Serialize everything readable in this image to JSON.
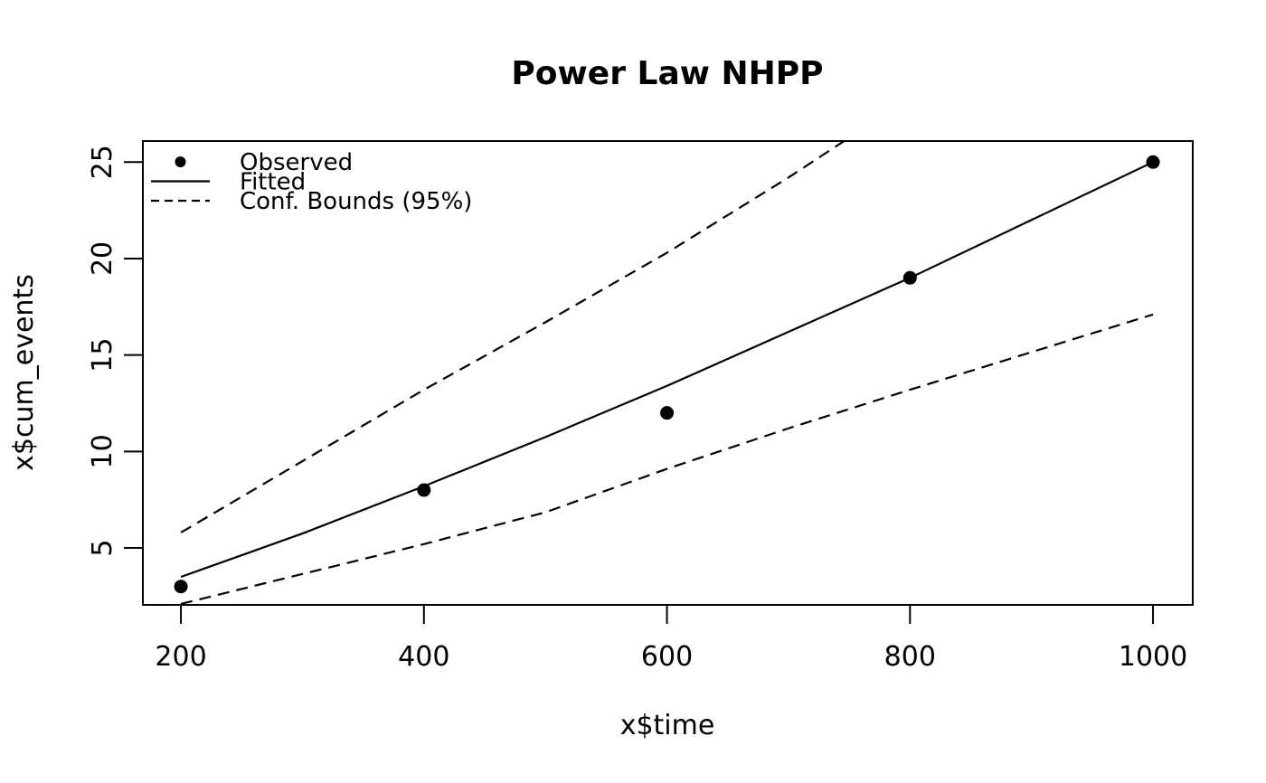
{
  "figure": {
    "background_color": "#ffffff",
    "foreground_color": "#000000"
  },
  "chart_data": {
    "type": "line",
    "title": "Power Law NHPP",
    "xlabel": "x$time",
    "ylabel": "x$cum_events",
    "xlim": [
      168.7,
      1032.7
    ],
    "ylim": [
      2.05,
      26.09
    ],
    "xticks": [
      "200",
      "400",
      "600",
      "800",
      "1000"
    ],
    "xtick_values": [
      200,
      400,
      600,
      800,
      1000
    ],
    "yticks": [
      "5",
      "10",
      "15",
      "20",
      "25"
    ],
    "ytick_values": [
      5,
      10,
      15,
      20,
      25
    ],
    "grid": false,
    "series": [
      {
        "name": "Observed",
        "type": "points",
        "x": [
          200,
          400,
          600,
          800,
          1000
        ],
        "y": [
          3,
          8,
          12,
          19,
          25
        ]
      },
      {
        "name": "Fitted",
        "type": "line",
        "x": [
          200,
          300,
          400,
          500,
          600,
          700,
          800,
          900,
          1000
        ],
        "y": [
          3.5,
          5.75,
          8.2,
          10.75,
          13.4,
          16.2,
          19.0,
          22.0,
          25.0
        ]
      },
      {
        "name": "Upper 95% confidence bound",
        "type": "dashed-line",
        "x": [
          200,
          300,
          400,
          500,
          600,
          700,
          746
        ],
        "y": [
          5.8,
          9.5,
          13.2,
          16.7,
          20.3,
          24.2,
          26.1
        ]
      },
      {
        "name": "Lower 95% confidence bound",
        "type": "dashed-line",
        "x": [
          200,
          300,
          400,
          500,
          600,
          700,
          800,
          900,
          1000
        ],
        "y": [
          2.1,
          3.65,
          5.2,
          6.85,
          9.1,
          11.2,
          13.2,
          15.15,
          17.1
        ]
      }
    ],
    "legend": {
      "position": "top-left",
      "boxed": false,
      "entries": [
        {
          "label": "Observed",
          "marker": "point"
        },
        {
          "label": "Fitted",
          "marker": "solid"
        },
        {
          "label": "Conf. Bounds (95%)",
          "marker": "dashed"
        }
      ]
    }
  }
}
